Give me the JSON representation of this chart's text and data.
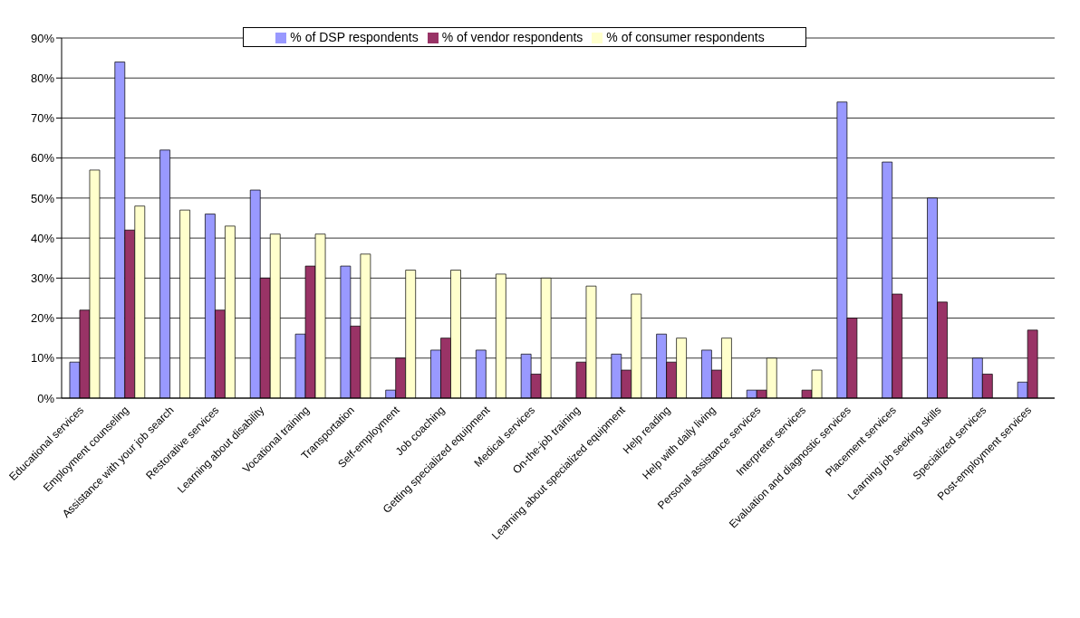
{
  "chart_data": {
    "type": "bar",
    "categories": [
      "Educational services",
      "Employment counseling",
      "Assistance with your job search",
      "Restorative services",
      "Learning about disability",
      "Vocational training",
      "Transportation",
      "Self-employment",
      "Job coaching",
      "Getting specialized equipment",
      "Medical services",
      "On-the-job training",
      "Learning about specialized equipment",
      "Help reading",
      "Help with daily living",
      "Personal assistance services",
      "Interpreter services",
      "Evaluation and diagnostic services",
      "Placement services",
      "Learning job seeking skills",
      "Specialized services",
      "Post-employment services"
    ],
    "series": [
      {
        "name": "% of DSP respondents",
        "color": "#9999ff",
        "values": [
          9,
          84,
          62,
          46,
          52,
          16,
          33,
          2,
          12,
          12,
          11,
          0,
          11,
          16,
          12,
          2,
          0,
          74,
          59,
          50,
          10,
          4
        ]
      },
      {
        "name": "% of vendor respondents",
        "color": "#993366",
        "values": [
          22,
          42,
          0,
          22,
          30,
          33,
          18,
          10,
          15,
          0,
          6,
          9,
          7,
          9,
          7,
          2,
          2,
          20,
          26,
          24,
          6,
          17
        ]
      },
      {
        "name": "% of consumer respondents",
        "color": "#ffffcc",
        "values": [
          57,
          48,
          47,
          43,
          41,
          41,
          36,
          32,
          32,
          31,
          30,
          28,
          26,
          15,
          15,
          10,
          7,
          0,
          0,
          0,
          0,
          0
        ]
      }
    ],
    "ylim": [
      0,
      90
    ],
    "yticks": [
      {
        "value": 0,
        "label": "0%"
      },
      {
        "value": 10,
        "label": "10%"
      },
      {
        "value": 20,
        "label": "20%"
      },
      {
        "value": 30,
        "label": "30%"
      },
      {
        "value": 40,
        "label": "40%"
      },
      {
        "value": 50,
        "label": "50%"
      },
      {
        "value": 60,
        "label": "60%"
      },
      {
        "value": 70,
        "label": "70%"
      },
      {
        "value": 80,
        "label": "80%"
      },
      {
        "value": 90,
        "label": "90%"
      }
    ],
    "grid": "y",
    "legend": "top"
  }
}
